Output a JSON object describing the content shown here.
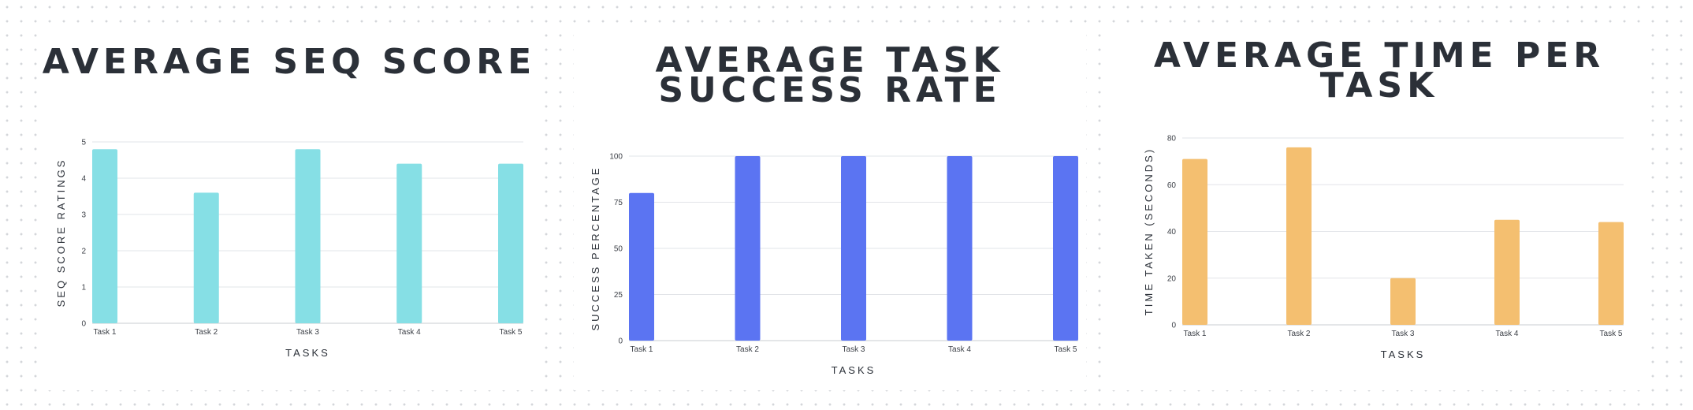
{
  "chart_data": [
    {
      "type": "bar",
      "title": "AVERAGE SEQ SCORE",
      "xlabel": "TASKS",
      "ylabel": "SEQ SCORE RATINGS",
      "categories": [
        "Task 1",
        "Task 2",
        "Task 3",
        "Task 4",
        "Task 5"
      ],
      "values": [
        4.8,
        3.6,
        4.8,
        4.4,
        4.4
      ],
      "ylim": [
        0,
        5
      ],
      "yticks": [
        0,
        1,
        2,
        3,
        4,
        5
      ],
      "color": "#86dfe5",
      "grid": true,
      "legend": "none"
    },
    {
      "type": "bar",
      "title": "AVERAGE TASK SUCCESS RATE",
      "xlabel": "TASKS",
      "ylabel": "SUCCESS PERCENTAGE",
      "categories": [
        "Task 1",
        "Task 2",
        "Task 3",
        "Task 4",
        "Task 5"
      ],
      "values": [
        80,
        100,
        100,
        100,
        100
      ],
      "ylim": [
        0,
        100
      ],
      "yticks": [
        0,
        25,
        50,
        75,
        100
      ],
      "color": "#5b74f2",
      "grid": true,
      "legend": "none"
    },
    {
      "type": "bar",
      "title": "AVERAGE TIME PER TASK",
      "xlabel": "TASKS",
      "ylabel": "TIME TAKEN (SECONDS)",
      "categories": [
        "Task 1",
        "Task 2",
        "Task 3",
        "Task 4",
        "Task 5"
      ],
      "values": [
        71,
        76,
        20,
        45,
        44
      ],
      "ylim": [
        0,
        80
      ],
      "yticks": [
        0,
        20,
        40,
        60,
        80
      ],
      "color": "#f4bf70",
      "grid": true,
      "legend": "none"
    }
  ]
}
